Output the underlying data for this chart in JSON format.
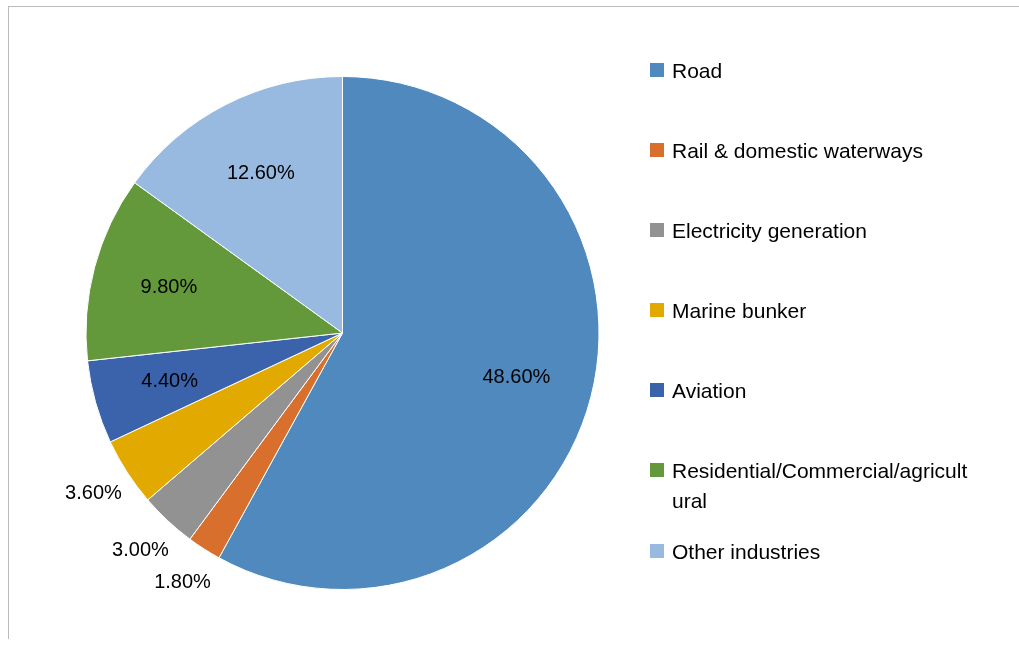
{
  "chart_data": {
    "type": "pie",
    "categories": [
      "Road",
      "Rail & domestic waterways",
      "Electricity generation",
      "Marine bunker",
      "Aviation",
      "Residential/Commercial/agricultural",
      "Other industries"
    ],
    "values": [
      48.6,
      1.8,
      3.0,
      3.6,
      4.4,
      9.8,
      12.6
    ],
    "colors": [
      "#4f89bd",
      "#d86f2c",
      "#929292",
      "#e2aa00",
      "#3a63ac",
      "#63993b",
      "#98b9e0"
    ],
    "value_labels": [
      "48.60%",
      "1.80%",
      "3.00%",
      "3.60%",
      "4.40%",
      "9.80%",
      "12.60%"
    ],
    "legend": "right"
  }
}
